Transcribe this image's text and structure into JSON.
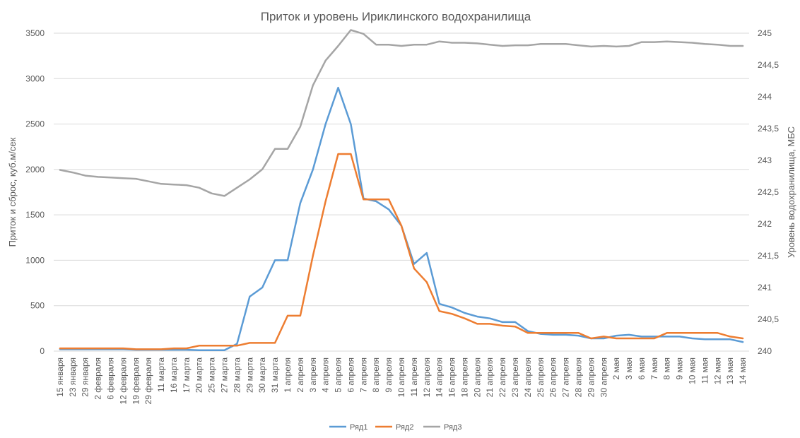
{
  "chart_data": {
    "type": "line",
    "title": "Приток и уровень Ириклинского водохранилища",
    "ylabel": "Приток и сброс, куб.м/сек",
    "y2label": "Уровень водохранилища, МБС",
    "ylim": [
      0,
      3500
    ],
    "yticks": [
      0,
      500,
      1000,
      1500,
      2000,
      2500,
      3000,
      3500
    ],
    "y2lim": [
      240,
      245
    ],
    "y2ticks": [
      "240",
      "240,5",
      "241",
      "241,5",
      "242",
      "242,5",
      "243",
      "243,5",
      "244",
      "244,5",
      "245"
    ],
    "grid": "horizontal",
    "legend_position": "bottom",
    "categories": [
      "15 января",
      "23 января",
      "29 января",
      "2 февраля",
      "6 февраля",
      "12 февраля",
      "19 февраля",
      "29 февраля",
      "11 марта",
      "16 марта",
      "17 марта",
      "20 марта",
      "25 марта",
      "27 марта",
      "28 марта",
      "29 марта",
      "30 марта",
      "31 марта",
      "1 апреля",
      "2 апреля",
      "3 апреля",
      "4 апреля",
      "5 апреля",
      "6 апреля",
      "7 апреля",
      "8 апреля",
      "9 апреля",
      "10 апреля",
      "11 апреля",
      "12 апреля",
      "14 апреля",
      "16 апреля",
      "18 апреля",
      "20 апреля",
      "21 апреля",
      "22 апреля",
      "23 апреля",
      "24 апреля",
      "25 апреля",
      "26 апреля",
      "27 апреля",
      "28 апреля",
      "29 апреля",
      "30 апреля",
      "2 мая",
      "3 мая",
      "6 мая",
      "7 мая",
      "8 мая",
      "9 мая",
      "10 мая",
      "11 мая",
      "12 мая",
      "13 мая",
      "14 мая"
    ],
    "series": [
      {
        "name": "Ряд1",
        "color": "#5b9bd5",
        "axis": "left",
        "values": [
          20,
          20,
          20,
          20,
          20,
          20,
          15,
          15,
          15,
          15,
          15,
          10,
          10,
          10,
          80,
          600,
          700,
          1000,
          1000,
          1630,
          2000,
          2500,
          2900,
          2500,
          1680,
          1650,
          1560,
          1380,
          960,
          1080,
          520,
          480,
          420,
          380,
          360,
          320,
          320,
          220,
          190,
          180,
          180,
          170,
          140,
          140,
          170,
          180,
          160,
          160,
          160,
          160,
          140,
          130,
          130,
          130,
          100
        ]
      },
      {
        "name": "Ряд2",
        "color": "#ed7d31",
        "axis": "left",
        "values": [
          30,
          30,
          30,
          30,
          30,
          30,
          20,
          20,
          20,
          30,
          30,
          60,
          60,
          60,
          60,
          90,
          90,
          90,
          390,
          390,
          1050,
          1650,
          2170,
          2170,
          1670,
          1670,
          1670,
          1380,
          910,
          760,
          440,
          410,
          360,
          300,
          300,
          280,
          270,
          200,
          200,
          200,
          200,
          200,
          140,
          160,
          140,
          140,
          140,
          140,
          200,
          200,
          200,
          200,
          200,
          160,
          140
        ]
      },
      {
        "name": "Ряд3",
        "color": "#a5a5a5",
        "axis": "right",
        "values": [
          242.85,
          242.81,
          242.76,
          242.74,
          242.73,
          242.72,
          242.71,
          242.67,
          242.63,
          242.62,
          242.61,
          242.57,
          242.48,
          242.44,
          242.57,
          242.7,
          242.86,
          243.18,
          243.18,
          243.53,
          244.18,
          244.57,
          244.8,
          245.05,
          244.99,
          244.82,
          244.82,
          244.8,
          244.82,
          244.82,
          244.87,
          244.85,
          244.85,
          244.84,
          244.82,
          244.8,
          244.81,
          244.81,
          244.83,
          244.83,
          244.83,
          244.81,
          244.79,
          244.8,
          244.79,
          244.8,
          244.86,
          244.86,
          244.87,
          244.86,
          244.85,
          244.83,
          244.82,
          244.8,
          244.8
        ]
      }
    ]
  }
}
